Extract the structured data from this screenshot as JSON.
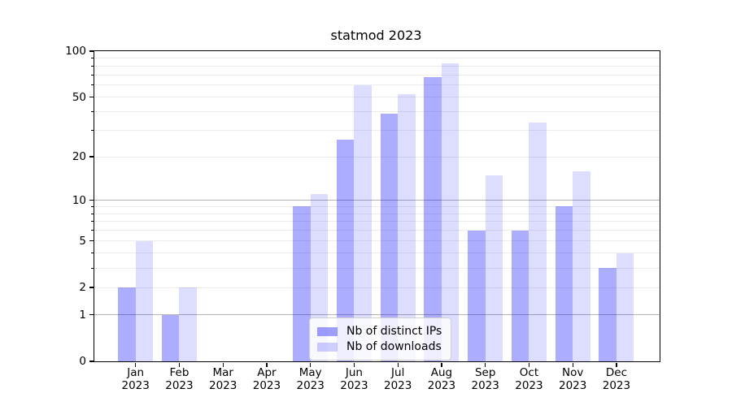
{
  "chart_data": {
    "type": "bar",
    "title": "statmod 2023",
    "year_label": "2023",
    "categories": [
      "Jan",
      "Feb",
      "Mar",
      "Apr",
      "May",
      "Jun",
      "Jul",
      "Aug",
      "Sep",
      "Oct",
      "Nov",
      "Dec"
    ],
    "series": [
      {
        "name": "Nb of distinct IPs",
        "color": "#0a0aff",
        "opacity": 0.335,
        "approx_hex": "#aaaafa",
        "values": [
          2,
          1,
          0,
          0,
          9,
          26,
          39,
          68,
          6,
          6,
          9,
          3
        ]
      },
      {
        "name": "Nb of downloads",
        "color": "#0a0aff",
        "opacity": 0.137,
        "approx_hex": "#dcdcfa",
        "values": [
          5,
          2,
          0,
          0,
          11,
          60,
          52,
          83,
          15,
          34,
          16,
          4
        ]
      }
    ],
    "yscale": "log1p",
    "ylim": [
      0,
      100
    ],
    "yticks": [
      0,
      1,
      2,
      5,
      10,
      20,
      50,
      100
    ],
    "major_gridlines": [
      1,
      10
    ],
    "minor_gridlines": [
      2,
      3,
      4,
      5,
      6,
      7,
      8,
      9,
      20,
      30,
      40,
      50,
      60,
      70,
      80,
      90
    ],
    "grid": true,
    "legend_position": "lower center",
    "colors": {
      "major_grid": "#b3b3b3",
      "minor_grid": "#ececec",
      "spine": "#000000",
      "legend_border": "#d0d0d0"
    }
  }
}
